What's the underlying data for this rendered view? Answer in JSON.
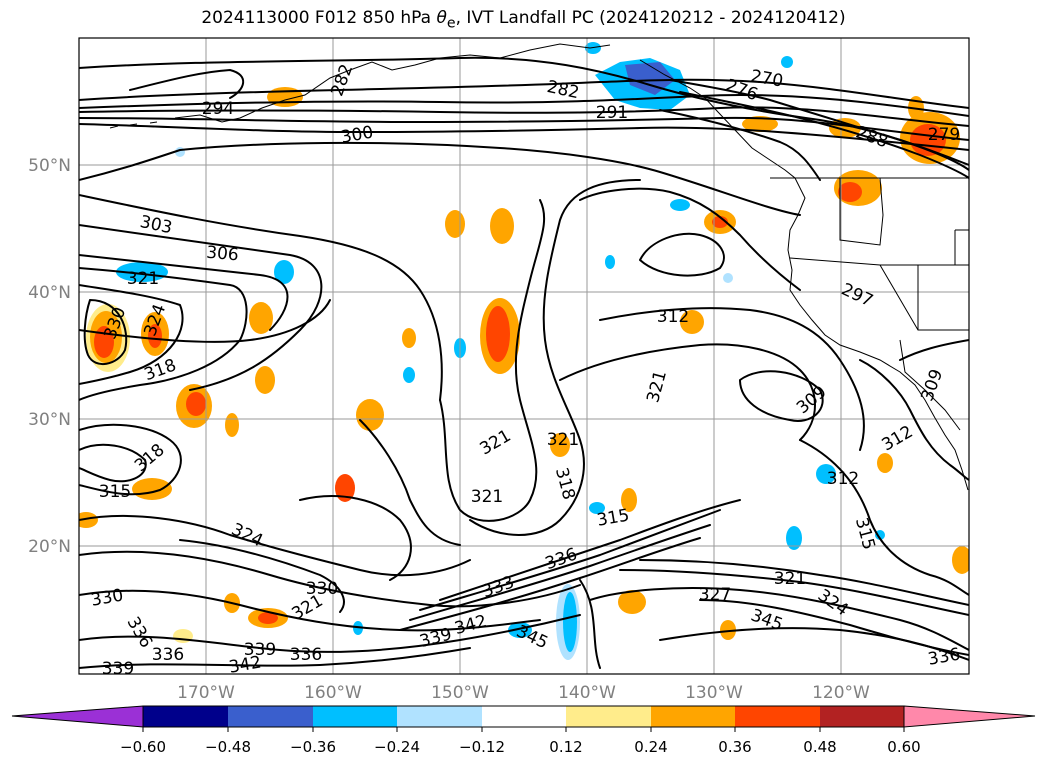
{
  "title": "2024113000 F012 850 hPa θe, IVT Landfall PC (2024120212 - 2024120412)",
  "title_parts": {
    "prefix": "2024113000 F012 850 hPa ",
    "symbol": "θ",
    "subscript": "e",
    "suffix": ", IVT Landfall PC (2024120212 - 2024120412)"
  },
  "latitude_labels": [
    "50°N",
    "40°N",
    "30°N",
    "20°N"
  ],
  "longitude_labels": [
    "170°W",
    "160°W",
    "150°W",
    "140°W",
    "130°W",
    "120°W"
  ],
  "colorbar": {
    "tick_labels": [
      "−0.60",
      "−0.48",
      "−0.36",
      "−0.24",
      "−0.12",
      "0.12",
      "0.24",
      "0.36",
      "0.48",
      "0.60"
    ],
    "colors": [
      "#9b30d6",
      "#00008b",
      "#3a5fcd",
      "#00bfff",
      "#b0e2ff",
      "#ffffff",
      "#ffec8b",
      "#ffa500",
      "#ff4500",
      "#b22222",
      "#ff88aa"
    ]
  },
  "contour_labels": [
    "294",
    "282",
    "291",
    "270",
    "276",
    "279",
    "288",
    "300",
    "303",
    "306",
    "321",
    "330",
    "324",
    "318",
    "315",
    "312",
    "309",
    "297",
    "333",
    "336",
    "339",
    "342",
    "345",
    "327"
  ],
  "chart_data": {
    "type": "contour map",
    "field": "850 hPa θe (K)",
    "fill_field": "IVT Landfall PC",
    "lon_range": [
      "180°W",
      "110°W"
    ],
    "lat_range": [
      "10°N",
      "60°N"
    ],
    "contour_interval": 3,
    "fill_levels": [
      -0.6,
      -0.48,
      -0.36,
      -0.24,
      -0.12,
      0.12,
      0.24,
      0.36,
      0.48,
      0.6
    ],
    "grid": true
  }
}
